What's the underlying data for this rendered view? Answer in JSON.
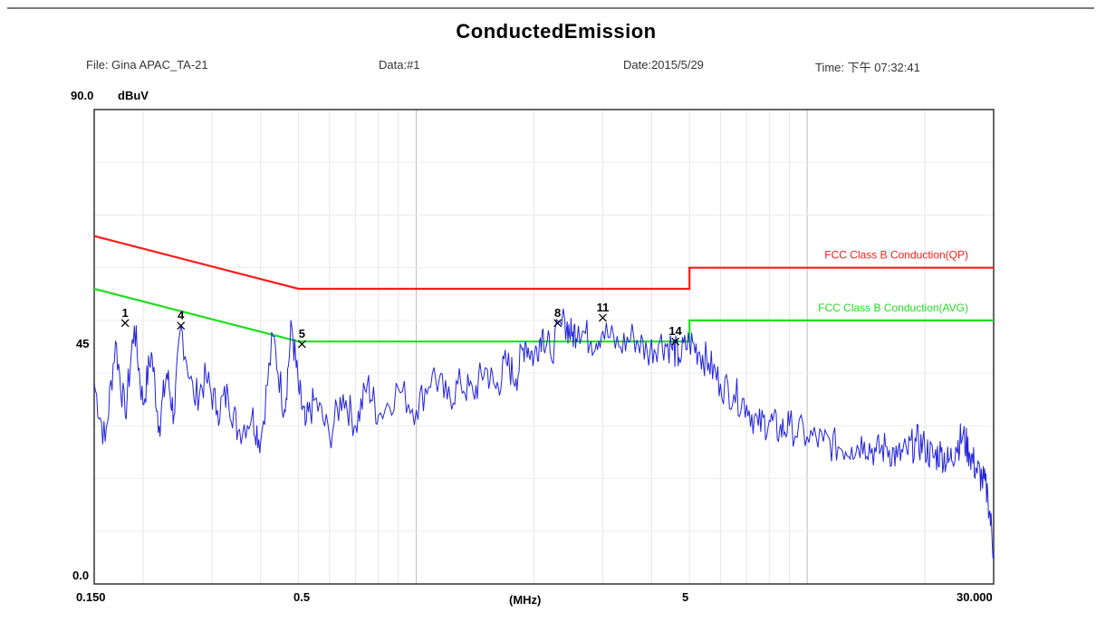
{
  "header": {
    "title": "ConductedEmission",
    "file": "File: Gina APAC_TA-21",
    "data": "Data:#1",
    "date": "Date:2015/5/29",
    "time": "Time: 下午 07:32:41"
  },
  "chart_data": {
    "type": "line",
    "title": "ConductedEmission",
    "xlabel": "(MHz)",
    "ylabel": "dBuV",
    "x_scale": "log",
    "xlim": [
      0.15,
      30
    ],
    "ylim": [
      0,
      90
    ],
    "y_top_label": "90.0",
    "y_ticks": [
      {
        "value": 45,
        "label": "45"
      },
      {
        "value": 0,
        "label": "0.0"
      }
    ],
    "x_ticks": [
      {
        "value": 0.15,
        "label": "0.150"
      },
      {
        "value": 0.5,
        "label": "0.5"
      },
      {
        "value": 5,
        "label": "5"
      },
      {
        "value": 30,
        "label": "30.000"
      }
    ],
    "grid": true,
    "limit_lines": [
      {
        "name": "FCC Class B Conduction(QP)",
        "color": "#ff1a1a",
        "points": [
          [
            0.15,
            66
          ],
          [
            0.5,
            56
          ],
          [
            5,
            56
          ],
          [
            5,
            60
          ],
          [
            30,
            60
          ]
        ]
      },
      {
        "name": "FCC Class B Conduction(AVG)",
        "color": "#22dd22",
        "points": [
          [
            0.15,
            56
          ],
          [
            0.5,
            46
          ],
          [
            5,
            46
          ],
          [
            5,
            50
          ],
          [
            30,
            50
          ]
        ]
      }
    ],
    "series": [
      {
        "color": "#2222dd",
        "x": [
          0.15,
          0.16,
          0.17,
          0.18,
          0.19,
          0.2,
          0.21,
          0.22,
          0.23,
          0.24,
          0.25,
          0.27,
          0.29,
          0.31,
          0.33,
          0.35,
          0.38,
          0.4,
          0.43,
          0.46,
          0.48,
          0.5,
          0.52,
          0.55,
          0.6,
          0.65,
          0.7,
          0.75,
          0.8,
          0.9,
          1.0,
          1.1,
          1.2,
          1.3,
          1.4,
          1.5,
          1.6,
          1.7,
          1.8,
          1.9,
          2.0,
          2.1,
          2.2,
          2.4,
          2.5,
          2.6,
          2.8,
          3.0,
          3.3,
          3.6,
          3.9,
          4.2,
          4.5,
          4.7,
          5.0,
          5.3,
          5.6,
          6.0,
          6.5,
          7.0,
          7.5,
          8.0,
          8.5,
          9.0,
          10,
          11,
          12,
          13,
          14,
          15,
          16,
          17,
          18,
          19,
          20,
          21,
          22,
          23,
          24,
          25,
          26,
          27,
          28,
          29,
          30
        ],
        "y": [
          38,
          27,
          46,
          32,
          49,
          34,
          44,
          30,
          40,
          32,
          49,
          35,
          39,
          33,
          36,
          29,
          32,
          27,
          47,
          33,
          49,
          37,
          30,
          35,
          28,
          36,
          30,
          38,
          32,
          37,
          33,
          40,
          35,
          38,
          36,
          41,
          37,
          42,
          39,
          46,
          43,
          48,
          44,
          50,
          47,
          49,
          46,
          48,
          45,
          47,
          44,
          46,
          45,
          43,
          46,
          44,
          42,
          38,
          36,
          34,
          30,
          31,
          29,
          30,
          28,
          27,
          26,
          26,
          27,
          25,
          26,
          24,
          25,
          27,
          26,
          24,
          25,
          23,
          26,
          28,
          25,
          22,
          20,
          17,
          6
        ]
      }
    ],
    "markers": [
      {
        "label": "1",
        "x": 0.18,
        "y": 49.5
      },
      {
        "label": "4",
        "x": 0.25,
        "y": 49.0
      },
      {
        "label": "5",
        "x": 0.51,
        "y": 45.5
      },
      {
        "label": "8",
        "x": 2.3,
        "y": 49.5
      },
      {
        "label": "11",
        "x": 3.0,
        "y": 50.5
      },
      {
        "label": "14",
        "x": 4.6,
        "y": 46.0
      }
    ]
  }
}
